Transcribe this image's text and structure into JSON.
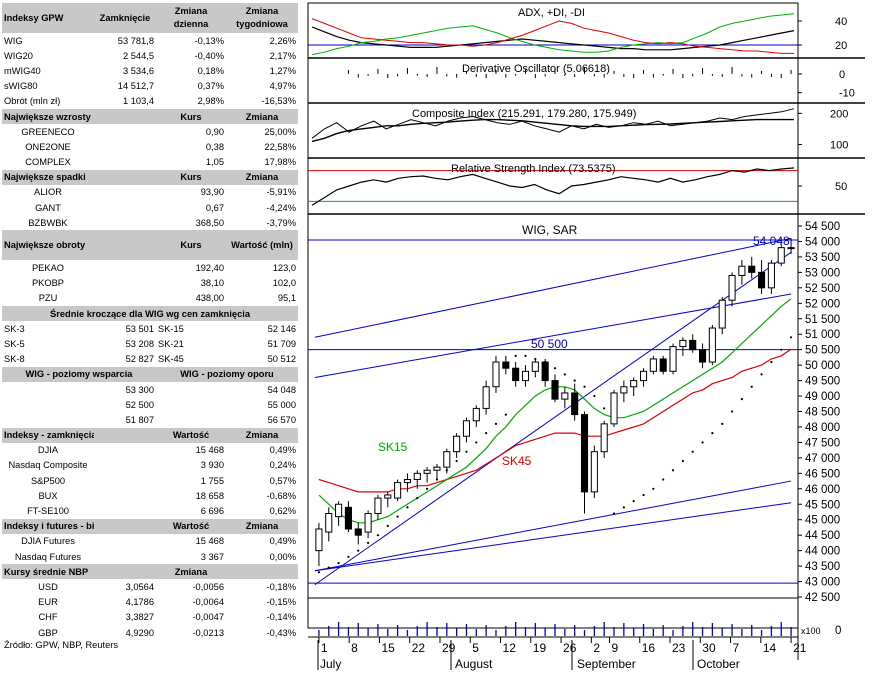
{
  "left_tables": [
    {
      "header": [
        "Indeksy GPW",
        "Zamknięcie",
        "Zmiana dzienna",
        "Zmiana tygodniowa"
      ],
      "cols": [
        "l",
        "num",
        "num",
        "num"
      ],
      "rows": [
        [
          "WIG",
          "53 781,8",
          "-0,13%",
          "2,26%"
        ],
        [
          "WIG20",
          "2 544,5",
          "-0,40%",
          "2,17%"
        ],
        [
          "mWIG40",
          "3 534,6",
          "0,18%",
          "1,27%"
        ],
        [
          "sWIG80",
          "14 512,7",
          "0,37%",
          "4,97%"
        ],
        [
          "Obrót (mln zł)",
          "1 103,4",
          "2,98%",
          "-16,53%"
        ]
      ]
    },
    {
      "header": [
        "Największe wzrosty",
        "",
        "Kurs",
        "Zmiana"
      ],
      "cols": [
        "ctr",
        "num",
        "num",
        "num"
      ],
      "rows": [
        [
          "GREENECO",
          "",
          "0,90",
          "25,00%"
        ],
        [
          "ONE2ONE",
          "",
          "0,38",
          "22,58%"
        ],
        [
          "COMPLEX",
          "",
          "1,05",
          "17,98%"
        ]
      ]
    },
    {
      "header": [
        "Największe spadki",
        "",
        "Kurs",
        "Zmiana"
      ],
      "cols": [
        "ctr",
        "num",
        "num",
        "num"
      ],
      "rows": [
        [
          "ALIOR",
          "",
          "93,90",
          "-5,91%"
        ],
        [
          "GANT",
          "",
          "0,67",
          "-4,24%"
        ],
        [
          "BZBWBK",
          "",
          "368,50",
          "-3,79%"
        ]
      ]
    },
    {
      "header": [
        "Największe obroty",
        "",
        "Kurs",
        "Wartość (mln)"
      ],
      "cols": [
        "ctr",
        "num",
        "num",
        "num"
      ],
      "rows": [
        [
          "PEKAO",
          "",
          "192,40",
          "123,0"
        ],
        [
          "PKOBP",
          "",
          "38,10",
          "102,0"
        ],
        [
          "PZU",
          "",
          "438,00",
          "95,1"
        ]
      ]
    },
    {
      "header": [
        "Średnie kroczące dla WIG wg cen zamknięcia"
      ],
      "span": true,
      "cols": [
        "l",
        "num",
        "l",
        "num"
      ],
      "rows": [
        [
          "SK-3",
          "53 501",
          "SK-15",
          "52 146"
        ],
        [
          "SK-5",
          "53 208",
          "SK-21",
          "51 709"
        ],
        [
          "SK-8",
          "52 827",
          "SK-45",
          "50 512"
        ]
      ]
    },
    {
      "header": [
        "WIG - poziomy wsparcia",
        "WIG - poziomy oporu"
      ],
      "half": true,
      "cols": [
        "num",
        "num",
        "num",
        "num"
      ],
      "rows": [
        [
          "",
          "53 300",
          "",
          "54 048"
        ],
        [
          "",
          "52 500",
          "",
          "55 000"
        ],
        [
          "",
          "51 807",
          "",
          "56 570"
        ]
      ]
    },
    {
      "header": [
        "Indeksy - zamknięcia",
        "",
        "Wartość",
        "Zmiana"
      ],
      "cols": [
        "ctr",
        "num",
        "num",
        "num"
      ],
      "rows": [
        [
          "DJIA",
          "",
          "15 468",
          "0,49%"
        ],
        [
          "Nasdaq Composite",
          "",
          "3 930",
          "0,24%"
        ],
        [
          "S&P500",
          "",
          "1 755",
          "0,57%"
        ],
        [
          "BUX",
          "",
          "18 658",
          "-0,68%"
        ],
        [
          "FT-SE100",
          "",
          "6 696",
          "0,62%"
        ]
      ]
    },
    {
      "header": [
        "Indeksy i futures - bieżące",
        "",
        "Wartość",
        "Zmiana"
      ],
      "cols": [
        "ctr",
        "num",
        "num",
        "num"
      ],
      "rows": [
        [
          "DJIA Futures",
          "",
          "15 468",
          "0,49%"
        ],
        [
          "Nasdaq Futures",
          "",
          "3 367",
          "0,00%"
        ]
      ]
    },
    {
      "header": [
        "Kursy średnie NBP",
        "",
        "Zmiana",
        ""
      ],
      "cols": [
        "ctr",
        "num",
        "num",
        "num"
      ],
      "rows": [
        [
          "USD",
          "3,0564",
          "-0,0056",
          "-0,18%"
        ],
        [
          "EUR",
          "4,1786",
          "-0,0064",
          "-0,15%"
        ],
        [
          "CHF",
          "3,3827",
          "-0,0047",
          "-0,14%"
        ],
        [
          "GBP",
          "4,9290",
          "-0,0213",
          "-0,43%"
        ]
      ]
    }
  ],
  "source_note": "Źródło: GPW, NBP, Reuters",
  "colors": {
    "table_header_bg": "#c8c8c8",
    "adx_line": "#000000",
    "plus_di": "#00b000",
    "minus_di": "#e00000",
    "sk15": "#00aa00",
    "sk45": "#dd0000",
    "channel": "#0000cc",
    "sar_dots": "#000000",
    "label_blue": "#0000cc"
  },
  "chart_data": [
    {
      "type": "line",
      "title": "ADX, +DI, -DI",
      "yticks": [
        20,
        40
      ],
      "ylim": [
        10,
        55
      ],
      "series": [
        {
          "name": "ADX",
          "values": [
            35,
            31,
            27,
            24,
            22,
            21,
            20,
            19,
            18,
            18,
            18,
            19,
            20,
            21,
            22,
            23,
            24,
            25,
            24,
            23,
            22,
            21,
            20,
            19,
            18,
            17,
            17,
            16,
            16,
            16,
            17,
            18,
            19,
            20,
            22,
            24,
            26,
            28,
            30,
            32
          ]
        },
        {
          "name": "+DI",
          "values": [
            12,
            14,
            17,
            19,
            22,
            23,
            25,
            26,
            28,
            30,
            32,
            34,
            35,
            36,
            33,
            30,
            26,
            23,
            20,
            18,
            16,
            15,
            14,
            14,
            15,
            18,
            20,
            21,
            22,
            21,
            22,
            26,
            30,
            35,
            38,
            40,
            42,
            44,
            45,
            46
          ]
        },
        {
          "name": "-DI",
          "values": [
            42,
            38,
            34,
            30,
            26,
            25,
            24,
            23,
            22,
            22,
            21,
            20,
            20,
            19,
            20,
            22,
            25,
            28,
            32,
            36,
            40,
            38,
            34,
            32,
            30,
            27,
            24,
            22,
            21,
            22,
            21,
            19,
            18,
            17,
            16,
            15,
            15,
            14,
            13,
            13
          ]
        }
      ],
      "hline": 20
    },
    {
      "type": "bar",
      "title": "Derivative Oscillator (5.06618)",
      "yticks": [
        0,
        -10
      ],
      "ylim": [
        -15,
        8
      ]
    },
    {
      "type": "line",
      "title": "Composite Index (215.291, 179.280, 175.949)",
      "yticks": [
        100,
        200
      ],
      "ylim": [
        60,
        230
      ],
      "series": [
        {
          "name": "",
          "values": [
            120,
            150,
            170,
            140,
            160,
            175,
            150,
            165,
            180,
            170,
            160,
            175,
            185,
            190,
            180,
            170,
            165,
            175,
            160,
            150,
            140,
            160,
            150,
            165,
            155,
            160,
            170,
            165,
            175,
            160,
            165,
            170,
            175,
            185,
            180,
            190,
            195,
            200,
            205,
            215
          ]
        },
        {
          "name": "",
          "values": [
            110,
            120,
            135,
            145,
            150,
            155,
            160,
            160,
            165,
            168,
            170,
            172,
            175,
            178,
            180,
            180,
            178,
            176,
            172,
            168,
            164,
            160,
            158,
            158,
            158,
            160,
            162,
            164,
            165,
            166,
            168,
            170,
            172,
            174,
            176,
            178,
            180,
            180,
            180,
            180
          ]
        }
      ]
    },
    {
      "type": "line",
      "title": "Relative Strength Index (73.5375)",
      "yticks": [
        50
      ],
      "ylim": [
        15,
        85
      ],
      "hlines": [
        70,
        30
      ],
      "series": [
        {
          "name": "",
          "values": [
            25,
            35,
            45,
            50,
            55,
            58,
            55,
            60,
            62,
            63,
            60,
            58,
            62,
            65,
            60,
            55,
            50,
            48,
            52,
            45,
            40,
            50,
            52,
            55,
            58,
            62,
            60,
            58,
            55,
            60,
            55,
            58,
            62,
            65,
            70,
            68,
            72,
            70,
            72,
            73.5
          ]
        }
      ]
    },
    {
      "type": "candlestick",
      "title": "WIG, SAR",
      "y_unit_label": "x100",
      "ylim": [
        42500,
        54500
      ],
      "yticks": [
        42500,
        43000,
        43500,
        44000,
        44500,
        45000,
        45500,
        46000,
        46500,
        47000,
        47500,
        48000,
        48500,
        49000,
        49500,
        50000,
        50500,
        51000,
        51500,
        52000,
        52500,
        53000,
        53500,
        54000,
        54500
      ],
      "x_day_labels": [
        "1",
        "8",
        "15",
        "22",
        "29",
        "5",
        "12",
        "19",
        "26",
        "2",
        "9",
        "16",
        "23",
        "30",
        "7",
        "14",
        "21"
      ],
      "x_month_labels": [
        "July",
        "August",
        "September",
        "October"
      ],
      "annotations": [
        "54 048",
        "50 500",
        "SK15",
        "SK45"
      ],
      "levels": [
        54048,
        50500
      ],
      "ohlc": [
        [
          44000,
          44900,
          43500,
          44700
        ],
        [
          44600,
          45400,
          44300,
          45200
        ],
        [
          45100,
          45600,
          44800,
          45500
        ],
        [
          45400,
          45600,
          44600,
          44700
        ],
        [
          44700,
          44900,
          44200,
          44500
        ],
        [
          44600,
          45300,
          44400,
          45200
        ],
        [
          45200,
          45800,
          45000,
          45700
        ],
        [
          45700,
          45900,
          45400,
          45800
        ],
        [
          45700,
          46300,
          45600,
          46200
        ],
        [
          46200,
          46500,
          45900,
          46300
        ],
        [
          46300,
          46600,
          46000,
          46500
        ],
        [
          46500,
          46700,
          46200,
          46600
        ],
        [
          46600,
          46800,
          46300,
          46700
        ],
        [
          46700,
          47300,
          46500,
          47200
        ],
        [
          47200,
          47800,
          47000,
          47700
        ],
        [
          47700,
          48300,
          47500,
          48200
        ],
        [
          48200,
          48700,
          48000,
          48600
        ],
        [
          48600,
          49500,
          48400,
          49300
        ],
        [
          49300,
          50300,
          49100,
          50100
        ],
        [
          50100,
          50300,
          49700,
          49900
        ],
        [
          49900,
          50100,
          49300,
          49500
        ],
        [
          49500,
          50000,
          49300,
          49800
        ],
        [
          49800,
          50200,
          49600,
          50100
        ],
        [
          50100,
          50200,
          49300,
          49500
        ],
        [
          49500,
          49700,
          48800,
          48900
        ],
        [
          48900,
          49300,
          48600,
          49100
        ],
        [
          49100,
          49400,
          48200,
          48400
        ],
        [
          48400,
          48500,
          45200,
          45900
        ],
        [
          45900,
          47400,
          45700,
          47200
        ],
        [
          47200,
          48200,
          47000,
          48100
        ],
        [
          48100,
          49200,
          48000,
          49100
        ],
        [
          49100,
          49500,
          48800,
          49300
        ],
        [
          49300,
          49600,
          49000,
          49500
        ],
        [
          49500,
          49900,
          49300,
          49800
        ],
        [
          49800,
          50300,
          49700,
          50200
        ],
        [
          50200,
          50300,
          49700,
          49800
        ],
        [
          49800,
          50700,
          49700,
          50600
        ],
        [
          50600,
          50900,
          50300,
          50800
        ],
        [
          50800,
          51000,
          50400,
          50500
        ],
        [
          50500,
          50700,
          49900,
          50100
        ],
        [
          50100,
          51300,
          50000,
          51200
        ],
        [
          51200,
          52200,
          51000,
          52100
        ],
        [
          52100,
          53000,
          51900,
          52900
        ],
        [
          52900,
          53400,
          52600,
          53200
        ],
        [
          53200,
          53500,
          52800,
          53000
        ],
        [
          53000,
          53400,
          52300,
          52500
        ],
        [
          52500,
          53400,
          52300,
          53300
        ],
        [
          53300,
          54100,
          53200,
          53800
        ],
        [
          53800,
          54100,
          53600,
          53780
        ]
      ],
      "sar": [
        43300,
        43450,
        43600,
        43800,
        44000,
        44250,
        44500,
        44800,
        45100,
        45400,
        45700,
        46000,
        46300,
        46600,
        46900,
        47200,
        47500,
        47800,
        48100,
        48400,
        50300,
        50300,
        50200,
        50100,
        49900,
        49700,
        49500,
        49300,
        49000,
        48600,
        45200,
        45400,
        45600,
        45800,
        46000,
        46300,
        46600,
        46900,
        47200,
        47500,
        47800,
        48100,
        48500,
        48900,
        49300,
        49700,
        50100,
        50500,
        50900
      ],
      "sk15": [
        45800,
        45500,
        45200,
        45000,
        44900,
        44900,
        45000,
        45100,
        45300,
        45500,
        45700,
        45900,
        46100,
        46300,
        46500,
        46700,
        47000,
        47300,
        47700,
        48000,
        48400,
        48700,
        49000,
        49200,
        49300,
        49300,
        49200,
        48900,
        48600,
        48400,
        48300,
        48300,
        48400,
        48500,
        48700,
        48900,
        49100,
        49300,
        49500,
        49700,
        49900,
        50100,
        50400,
        50700,
        51000,
        51300,
        51600,
        51900,
        52146
      ],
      "sk45": [
        46300,
        46200,
        46100,
        46000,
        45900,
        45900,
        45900,
        45900,
        46000,
        46000,
        46100,
        46100,
        46200,
        46300,
        46400,
        46500,
        46600,
        46800,
        47000,
        47200,
        47400,
        47500,
        47600,
        47700,
        47800,
        47800,
        47800,
        47700,
        47700,
        47700,
        47800,
        47900,
        48000,
        48100,
        48300,
        48500,
        48700,
        48900,
        49100,
        49200,
        49400,
        49500,
        49600,
        49800,
        49900,
        50000,
        50200,
        50300,
        50512
      ]
    }
  ]
}
